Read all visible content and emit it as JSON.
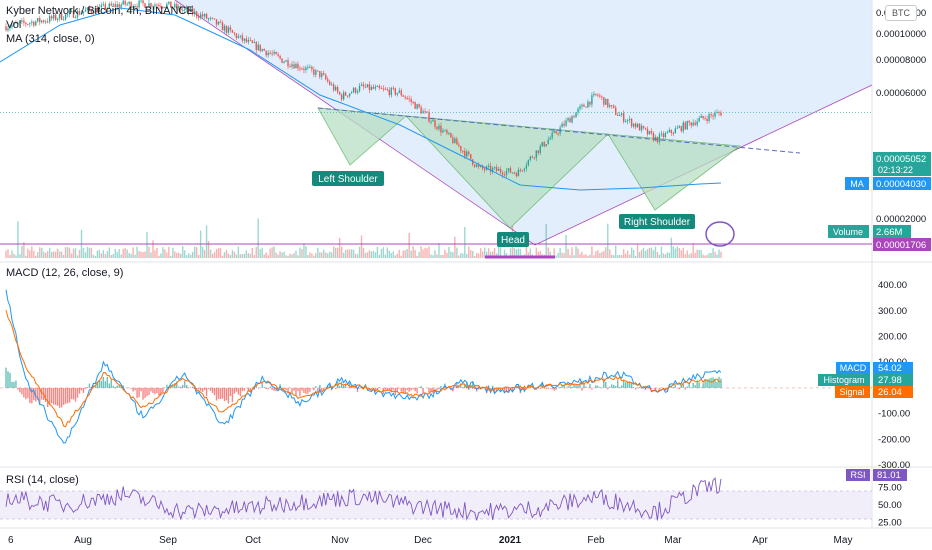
{
  "header": {
    "symbol_title": "Kyber Network / Bitcoin, 4h, BINANCE",
    "vol_label": "Vol",
    "ma_label": "MA (314, close, 0)",
    "quote_currency": "BTC"
  },
  "price_axis": {
    "ticks": [
      "0.00012000",
      "0.00010000",
      "0.00008000",
      "0.00006000",
      "0.00003000",
      "0.00002000"
    ],
    "last_price": "0.00005052",
    "countdown": "02:13:22",
    "ma_tag": "MA",
    "ma_value": "0.00004030",
    "volume_tag": "Volume",
    "volume_value": "2.66M",
    "line_value": "0.00001706"
  },
  "pattern_labels": {
    "left_shoulder": "Left Shoulder",
    "head": "Head",
    "right_shoulder": "Right Shoulder"
  },
  "macd": {
    "title": "MACD (12, 26, close, 9)",
    "ticks": [
      "400.00",
      "300.00",
      "200.00",
      "100.00",
      "0.00",
      "-100.00",
      "-200.00",
      "-300.00"
    ],
    "macd_tag": "MACD",
    "macd_value": "54.02",
    "hist_tag": "Histogram",
    "hist_value": "27.98",
    "signal_tag": "Signal",
    "signal_value": "26.04"
  },
  "rsi": {
    "title": "RSI (14, close)",
    "ticks": [
      "75.00",
      "50.00",
      "25.00"
    ],
    "tag": "RSI",
    "value": "81.01"
  },
  "time_axis": [
    "6",
    "Aug",
    "Sep",
    "Oct",
    "Nov",
    "Dec",
    "2021",
    "Feb",
    "Mar",
    "Apr",
    "May"
  ],
  "colors": {
    "up": "#26a69a",
    "down": "#ef5350",
    "ma": "#2196f3",
    "pattern_fill": "#b7dfc3",
    "blue_zone": "#dbeafb",
    "purple_line": "#ab47bc",
    "macd_line": "#2196f3",
    "signal_line": "#ff6d00",
    "rsi_line": "#7e57c2",
    "label_teal": "#138a7c"
  },
  "chart_data": [
    {
      "type": "line",
      "name": "price",
      "x": [
        "2020-07-06",
        "2020-07-20",
        "2020-08-03",
        "2020-08-17",
        "2020-08-31",
        "2020-09-14",
        "2020-09-28",
        "2020-10-12",
        "2020-10-26",
        "2020-11-02",
        "2020-11-09",
        "2020-11-23",
        "2020-12-07",
        "2020-12-21",
        "2021-01-04",
        "2021-01-18",
        "2021-02-01",
        "2021-02-08",
        "2021-02-22",
        "2021-03-08",
        "2021-03-17"
      ],
      "series": [
        {
          "name": "price",
          "values": [
            0.000107,
            0.000113,
            0.000122,
            0.00013,
            0.00013,
            0.000117,
            9.5e-05,
            8e-05,
            7e-05,
            5.8e-05,
            6.3e-05,
            6e-05,
            4.4e-05,
            3.1e-05,
            3e-05,
            4.3e-05,
            5.9e-05,
            5e-05,
            4e-05,
            4.7e-05,
            5.052e-05
          ]
        }
      ],
      "ylim": [
        1.5e-05,
        0.00013
      ]
    },
    {
      "type": "line",
      "name": "MACD (12, 26, close, 9)",
      "x": [
        "2020-07-06",
        "2020-07-13",
        "2020-07-27",
        "2020-08-10",
        "2020-08-24",
        "2020-09-07",
        "2020-09-21",
        "2020-10-05",
        "2020-10-19",
        "2020-11-02",
        "2020-11-16",
        "2020-11-30",
        "2020-12-14",
        "2020-12-28",
        "2021-01-11",
        "2021-01-25",
        "2021-02-08",
        "2021-02-22",
        "2021-03-08",
        "2021-03-17"
      ],
      "series": [
        {
          "name": "MACD",
          "values": [
            380,
            30,
            -220,
            100,
            -120,
            60,
            -150,
            40,
            -60,
            30,
            -20,
            -40,
            20,
            -10,
            10,
            20,
            60,
            -20,
            50,
            54.02
          ]
        },
        {
          "name": "Signal",
          "values": [
            300,
            80,
            -150,
            60,
            -80,
            40,
            -100,
            30,
            -40,
            20,
            -10,
            -30,
            10,
            -5,
            5,
            15,
            40,
            -10,
            30,
            26.04
          ]
        }
      ],
      "ylim": [
        -300,
        420
      ]
    },
    {
      "type": "line",
      "name": "RSI (14, close)",
      "x": [
        "2020-07-06",
        "2020-07-27",
        "2020-08-17",
        "2020-09-07",
        "2020-09-28",
        "2020-10-19",
        "2020-11-09",
        "2020-11-30",
        "2020-12-21",
        "2021-01-11",
        "2021-02-01",
        "2021-02-22",
        "2021-03-08",
        "2021-03-17"
      ],
      "series": [
        {
          "name": "RSI",
          "values": [
            60,
            50,
            65,
            40,
            45,
            55,
            62,
            48,
            40,
            45,
            62,
            40,
            70,
            81.01
          ]
        }
      ],
      "ylim": [
        20,
        100
      ]
    }
  ]
}
